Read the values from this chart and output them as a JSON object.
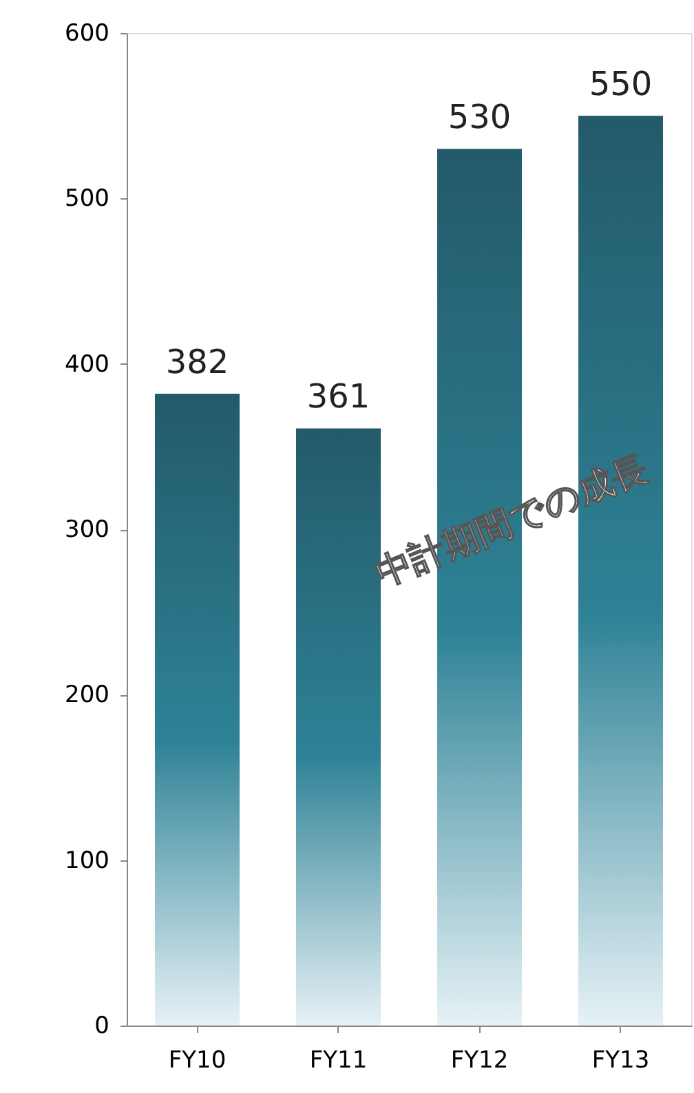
{
  "chart_data": {
    "type": "bar",
    "categories": [
      "FY10",
      "FY11",
      "FY12",
      "FY13"
    ],
    "values": [
      382,
      361,
      530,
      550
    ],
    "color": "#235a6a",
    "ylim": [
      0,
      600
    ],
    "yticks": [
      0,
      100,
      200,
      300,
      400,
      500,
      600
    ],
    "grid": false,
    "data_labels": true,
    "annotations": [
      "中計期間での成長"
    ]
  }
}
